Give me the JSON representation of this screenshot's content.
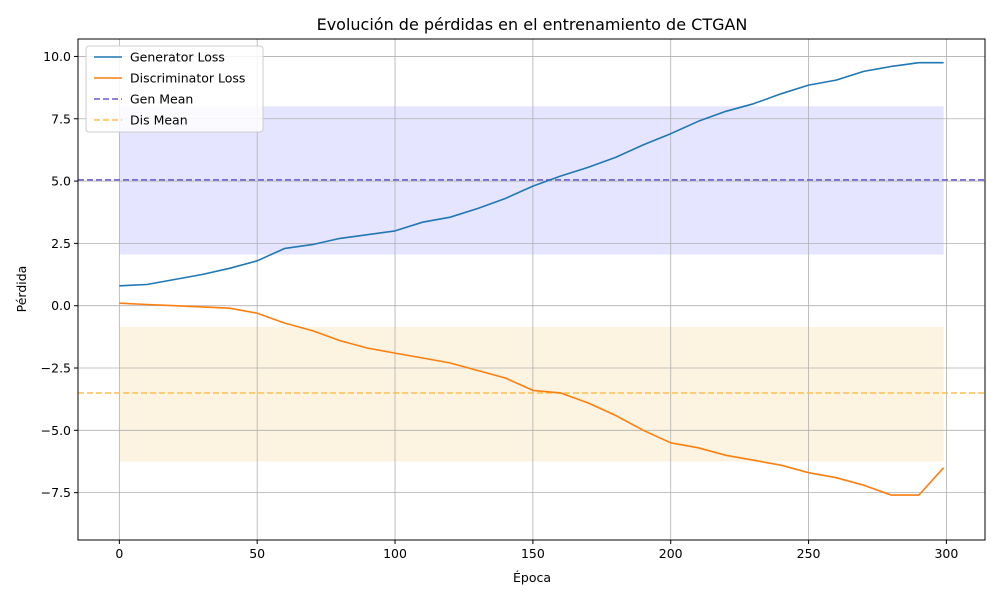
{
  "chart_data": {
    "type": "line",
    "title": "Evolución de pérdidas en el entrenamiento de CTGAN",
    "xlabel": "Época",
    "ylabel": "Pérdida",
    "xlim": [
      -15,
      314
    ],
    "ylim": [
      -9.4,
      10.7
    ],
    "xticks": [
      0,
      50,
      100,
      150,
      200,
      250,
      300
    ],
    "xtick_labels": [
      "0",
      "50",
      "100",
      "150",
      "200",
      "250",
      "300"
    ],
    "yticks": [
      10.0,
      7.5,
      5.0,
      2.5,
      0.0,
      -2.5,
      -5.0,
      -7.5
    ],
    "ytick_labels": [
      "10.0",
      "7.5",
      "5.0",
      "2.5",
      "0.0",
      "−2.5",
      "−5.0",
      "−7.5"
    ],
    "grid": true,
    "legend_position": "top-left",
    "series": [
      {
        "name": "Generator Loss",
        "color": "#1f77b4",
        "x": [
          0,
          10,
          20,
          30,
          40,
          50,
          60,
          70,
          80,
          90,
          100,
          110,
          120,
          130,
          140,
          150,
          160,
          170,
          180,
          190,
          200,
          210,
          220,
          230,
          240,
          250,
          260,
          270,
          280,
          290,
          299
        ],
        "values": [
          0.8,
          0.85,
          1.05,
          1.25,
          1.5,
          1.8,
          2.3,
          2.45,
          2.7,
          2.85,
          3.0,
          3.35,
          3.55,
          3.9,
          4.3,
          4.8,
          5.2,
          5.55,
          5.95,
          6.45,
          6.9,
          7.4,
          7.8,
          8.1,
          8.5,
          8.85,
          9.05,
          9.4,
          9.6,
          9.75,
          9.75
        ]
      },
      {
        "name": "Discriminator Loss",
        "color": "#ff7f0e",
        "x": [
          0,
          10,
          20,
          30,
          40,
          50,
          60,
          70,
          80,
          90,
          100,
          110,
          120,
          130,
          140,
          150,
          160,
          170,
          180,
          190,
          200,
          210,
          220,
          230,
          240,
          250,
          260,
          270,
          280,
          290,
          299
        ],
        "values": [
          0.1,
          0.05,
          0.0,
          -0.05,
          -0.1,
          -0.3,
          -0.7,
          -1.0,
          -1.4,
          -1.7,
          -1.9,
          -2.1,
          -2.3,
          -2.6,
          -2.9,
          -3.4,
          -3.5,
          -3.9,
          -4.4,
          -5.0,
          -5.5,
          -5.7,
          -6.0,
          -6.2,
          -6.4,
          -6.7,
          -6.9,
          -7.2,
          -7.6,
          -7.6,
          -6.5
        ]
      },
      {
        "name": "Gen Mean",
        "color": "#6a5acd",
        "style": "dashed",
        "value": 5.05
      },
      {
        "name": "Dis Mean",
        "color": "#ffc04d",
        "style": "dashed",
        "value": -3.5
      }
    ],
    "bands": [
      {
        "series": "Generator Loss",
        "color": "#e5e5ff",
        "x": [
          0,
          299
        ],
        "y": [
          2.05,
          8.0
        ]
      },
      {
        "series": "Discriminator Loss",
        "color": "#fdf3e1",
        "x": [
          0,
          299
        ],
        "y": [
          -6.25,
          -0.85
        ]
      }
    ]
  }
}
